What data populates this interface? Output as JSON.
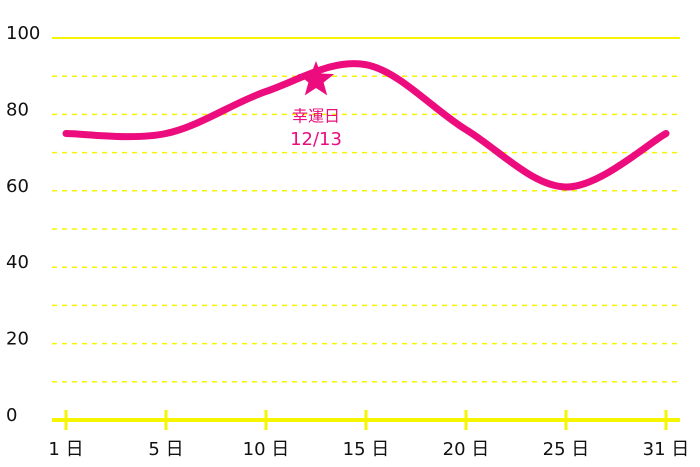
{
  "chart_data": {
    "type": "line",
    "categories": [
      "1 日",
      "5 日",
      "10 日",
      "15 日",
      "20 日",
      "25 日",
      "31 日"
    ],
    "series": [
      {
        "color": "#ec0c7e",
        "values": [
          75,
          75,
          86,
          93,
          76,
          61,
          75
        ]
      }
    ],
    "ylim": [
      0,
      100
    ],
    "yticks": [
      0,
      20,
      40,
      60,
      80,
      100
    ],
    "minor_gridlines": [
      10,
      30,
      50,
      70,
      90
    ],
    "grid": true,
    "grid_color": "#f5f500",
    "highlight": {
      "label": "幸運日",
      "date": "12/13",
      "value": 89,
      "color": "#ec0c7e"
    }
  }
}
